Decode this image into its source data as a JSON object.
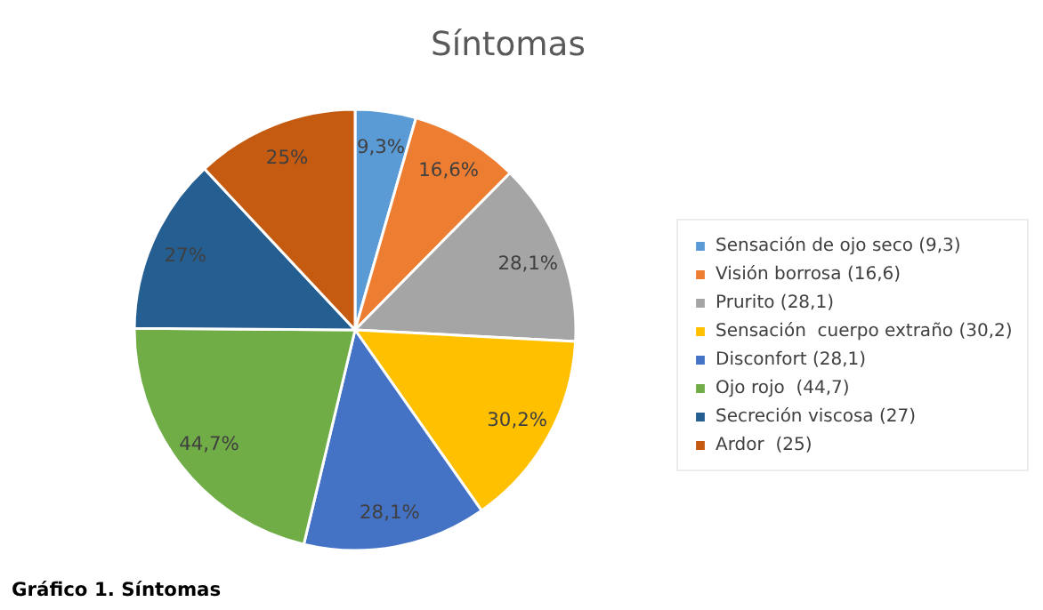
{
  "chart_data": {
    "type": "pie",
    "title": "Síntomas",
    "categories": [
      "Sensación de ojo seco (9,3)",
      "Visión borrosa (16,6)",
      "Prurito (28,1)",
      "Sensación  cuerpo extraño (30,2)",
      "Disconfort (28,1)",
      "Ojo rojo  (44,7)",
      "Secreción viscosa (27)",
      "Ardor  (25)"
    ],
    "values": [
      9.3,
      16.6,
      28.1,
      30.2,
      28.1,
      44.7,
      27,
      25
    ],
    "colors": [
      "#5b9bd5",
      "#ed7d31",
      "#a5a5a5",
      "#ffc000",
      "#4472c4",
      "#70ad47",
      "#255e91",
      "#c55a11"
    ],
    "value_labels": [
      "9,3%",
      "16,6%",
      "28,1%",
      "30,2%",
      "28,1%",
      "44,7%",
      "27%",
      "25%"
    ],
    "legend": "right",
    "annotations": [
      "Gráfico 1. Síntomas"
    ]
  }
}
